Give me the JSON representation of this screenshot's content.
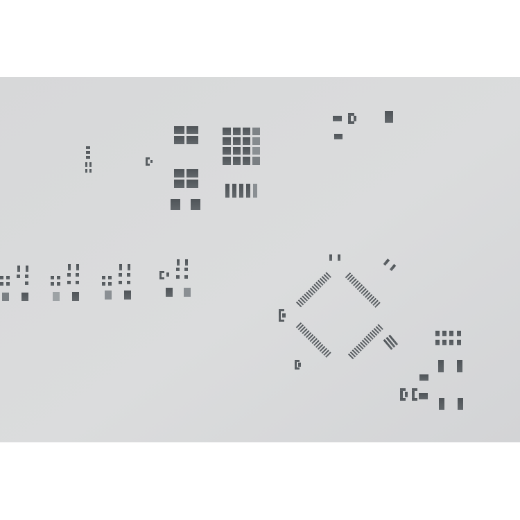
{
  "scene": {
    "subject": "smt-stencil-sheet",
    "colors": {
      "page_background": "#ffffff",
      "stencil_sheet": "#d9dadb",
      "aperture": "#565b5f",
      "aperture_light": "#7f8488",
      "aperture_bright": "#9da2a5"
    },
    "groups": [
      {
        "name": "vertical-pad-column",
        "count": 1
      },
      {
        "name": "sot-footprint",
        "count": 9
      },
      {
        "name": "grid-pad-array-2x2",
        "count": 2
      },
      {
        "name": "grid-pad-array-4x4",
        "count": 1
      },
      {
        "name": "fine-pitch-row",
        "count": 1
      },
      {
        "name": "small-component-cluster",
        "count": 4
      },
      {
        "name": "qfp-footprint",
        "count": 1
      },
      {
        "name": "pad-grid-2x4",
        "count": 1
      },
      {
        "name": "tall-pad-pair",
        "count": 2
      }
    ]
  }
}
